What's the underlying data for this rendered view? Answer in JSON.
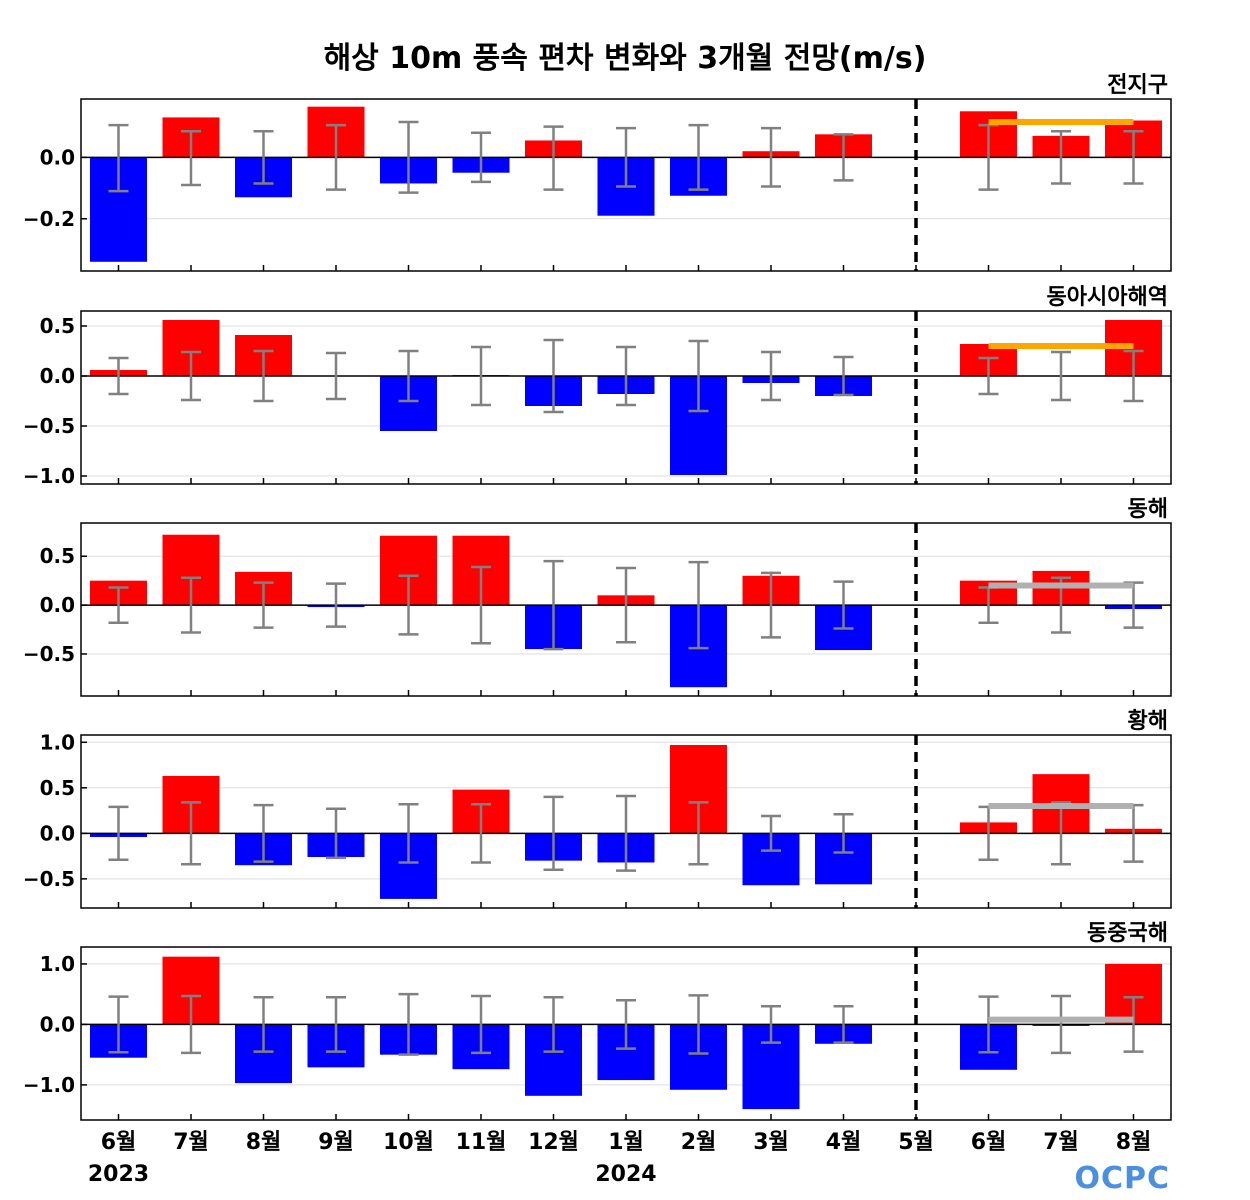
{
  "title": "해상 10m 풍속 편차 변화와 3개월 전망(m/s)",
  "logo": "OCPC",
  "x_labels": [
    "6월",
    "7월",
    "8월",
    "9월",
    "10월",
    "11월",
    "12월",
    "1월",
    "2월",
    "3월",
    "4월",
    "5월",
    "6월",
    "7월",
    "8월"
  ],
  "year_labels": [
    {
      "text": "2023",
      "index": 0
    },
    {
      "text": "2024",
      "index": 7
    }
  ],
  "forecast_boundary_index": 11,
  "colors": {
    "positive": "#ff0000",
    "negative": "#0000ff",
    "errorbar": "#808080",
    "forecast_orange": "#ffa500",
    "forecast_gray": "#b0b0b0"
  },
  "chart_data": [
    {
      "type": "bar",
      "region": "전지구",
      "ylim": [
        -0.37,
        0.19
      ],
      "yticks": [
        -0.2,
        0.0
      ],
      "ytick_labels": [
        "−0.2",
        "0.0"
      ],
      "values": [
        -0.34,
        0.13,
        -0.13,
        0.165,
        -0.085,
        -0.05,
        0.055,
        -0.19,
        -0.125,
        0.02,
        0.075,
        0.0,
        0.15,
        0.07,
        0.12
      ],
      "error_lower": [
        -0.11,
        -0.09,
        -0.085,
        -0.105,
        -0.115,
        -0.08,
        -0.105,
        -0.095,
        -0.105,
        -0.095,
        -0.075,
        null,
        -0.105,
        -0.085,
        -0.085
      ],
      "error_upper": [
        0.105,
        0.085,
        0.085,
        0.105,
        0.115,
        0.08,
        0.1,
        0.095,
        0.105,
        0.095,
        0.075,
        null,
        0.105,
        0.085,
        0.085
      ],
      "forecast_line": {
        "value": 0.115,
        "color": "orange"
      }
    },
    {
      "type": "bar",
      "region": "동아시아해역",
      "ylim": [
        -1.08,
        0.65
      ],
      "yticks": [
        -1.0,
        -0.5,
        0.0,
        0.5
      ],
      "ytick_labels": [
        "−1.0",
        "−0.5",
        "0.0",
        "0.5"
      ],
      "values": [
        0.06,
        0.56,
        0.41,
        0.0,
        -0.55,
        0.01,
        -0.3,
        -0.18,
        -0.99,
        -0.07,
        -0.2,
        0.0,
        0.32,
        0.0,
        0.56
      ],
      "error_lower": [
        -0.18,
        -0.24,
        -0.25,
        -0.23,
        -0.25,
        -0.29,
        -0.36,
        -0.29,
        -0.35,
        -0.24,
        -0.19,
        null,
        -0.18,
        -0.24,
        -0.25
      ],
      "error_upper": [
        0.18,
        0.24,
        0.25,
        0.23,
        0.25,
        0.29,
        0.36,
        0.29,
        0.35,
        0.24,
        0.19,
        null,
        0.18,
        0.24,
        0.25
      ],
      "forecast_line": {
        "value": 0.3,
        "color": "orange"
      }
    },
    {
      "type": "bar",
      "region": "동해",
      "ylim": [
        -0.93,
        0.84
      ],
      "yticks": [
        -0.5,
        0.0,
        0.5
      ],
      "ytick_labels": [
        "−0.5",
        "0.0",
        "0.5"
      ],
      "values": [
        0.25,
        0.72,
        0.34,
        -0.02,
        0.71,
        0.71,
        -0.45,
        0.1,
        -0.84,
        0.3,
        -0.46,
        0.0,
        0.25,
        0.35,
        -0.04
      ],
      "error_lower": [
        -0.18,
        -0.28,
        -0.23,
        -0.22,
        -0.3,
        -0.39,
        -0.45,
        -0.38,
        -0.44,
        -0.33,
        -0.24,
        null,
        -0.18,
        -0.28,
        -0.23
      ],
      "error_upper": [
        0.18,
        0.28,
        0.23,
        0.22,
        0.3,
        0.39,
        0.45,
        0.38,
        0.44,
        0.33,
        0.24,
        null,
        0.18,
        0.28,
        0.23
      ],
      "forecast_line": {
        "value": 0.2,
        "color": "gray"
      }
    },
    {
      "type": "bar",
      "region": "황해",
      "ylim": [
        -0.82,
        1.08
      ],
      "yticks": [
        -0.5,
        0.0,
        0.5,
        1.0
      ],
      "ytick_labels": [
        "−0.5",
        "0.0",
        "0.5",
        "1.0"
      ],
      "values": [
        -0.04,
        0.63,
        -0.35,
        -0.26,
        -0.72,
        0.48,
        -0.3,
        -0.32,
        0.97,
        -0.57,
        -0.56,
        0.0,
        0.12,
        0.65,
        0.05
      ],
      "error_lower": [
        -0.29,
        -0.34,
        -0.31,
        -0.27,
        -0.32,
        -0.32,
        -0.4,
        -0.41,
        -0.34,
        -0.19,
        -0.21,
        null,
        -0.29,
        -0.34,
        -0.31
      ],
      "error_upper": [
        0.29,
        0.34,
        0.31,
        0.27,
        0.32,
        0.32,
        0.4,
        0.41,
        0.34,
        0.19,
        0.21,
        null,
        0.29,
        0.34,
        0.31
      ],
      "forecast_line": {
        "value": 0.3,
        "color": "gray"
      }
    },
    {
      "type": "bar",
      "region": "동중국해",
      "ylim": [
        -1.58,
        1.28
      ],
      "yticks": [
        -1.0,
        0.0,
        1.0
      ],
      "ytick_labels": [
        "−1.0",
        "0.0",
        "1.0"
      ],
      "values": [
        -0.55,
        1.12,
        -0.97,
        -0.71,
        -0.5,
        -0.74,
        -1.18,
        -0.92,
        -1.08,
        -1.4,
        -0.32,
        0.0,
        -0.75,
        -0.02,
        1.0
      ],
      "error_lower": [
        -0.46,
        -0.47,
        -0.45,
        -0.45,
        -0.5,
        -0.47,
        -0.45,
        -0.4,
        -0.48,
        -0.3,
        -0.3,
        null,
        -0.46,
        -0.47,
        -0.45
      ],
      "error_upper": [
        0.46,
        0.47,
        0.45,
        0.45,
        0.5,
        0.47,
        0.45,
        0.4,
        0.48,
        0.3,
        0.3,
        null,
        0.46,
        0.47,
        0.45
      ],
      "forecast_line": {
        "value": 0.08,
        "color": "gray"
      }
    }
  ]
}
